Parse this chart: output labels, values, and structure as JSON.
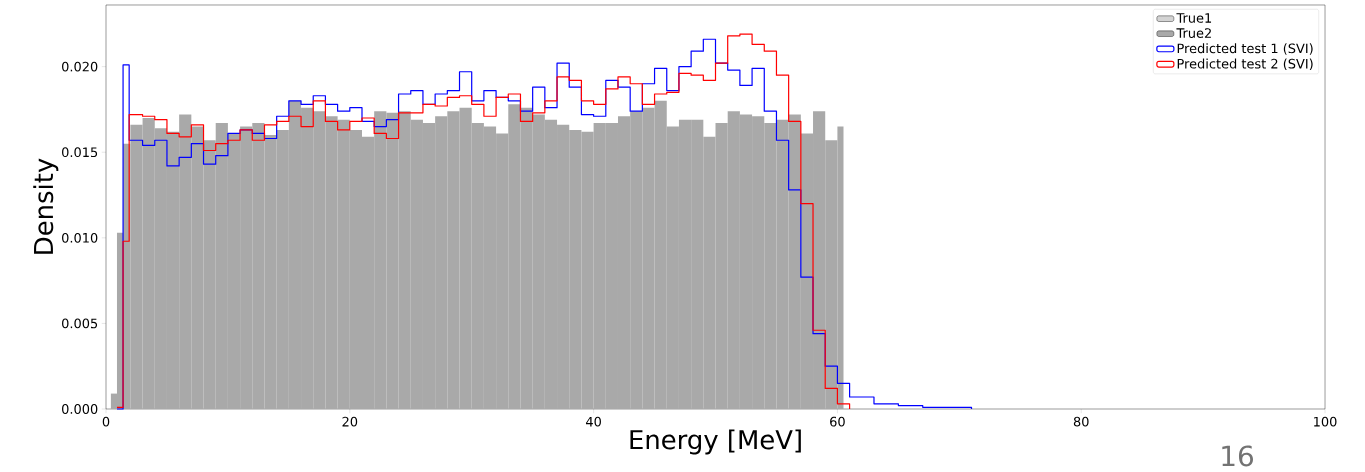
{
  "chart_data": {
    "type": "histogram",
    "xlabel": "Energy [MeV]",
    "ylabel": "Density",
    "xlim": [
      0,
      100
    ],
    "ylim": [
      0,
      0.0236
    ],
    "xticks": [
      0,
      20,
      40,
      60,
      80,
      100
    ],
    "yticks": [
      {
        "value": 0,
        "label": "0.000"
      },
      {
        "value": 0.005,
        "label": "0.005"
      },
      {
        "value": 0.01,
        "label": "0.010"
      },
      {
        "value": 0.015,
        "label": "0.015"
      },
      {
        "value": 0.02,
        "label": "0.020"
      }
    ],
    "legend": "top right",
    "annotations": [
      "16"
    ],
    "series": [
      {
        "name": "True1",
        "color": "#d3d3d3"
      },
      {
        "name": "True2",
        "color": "#a9a9a9",
        "bins": [
          0.4,
          0.9,
          1.4,
          2,
          3,
          4,
          5,
          6,
          7,
          8,
          9,
          10,
          11,
          12,
          13,
          14,
          15,
          16,
          17,
          18,
          19,
          20,
          21,
          22,
          23,
          24,
          25,
          26,
          27,
          28,
          29,
          30,
          31,
          32,
          33,
          34,
          35,
          36,
          37,
          38,
          39,
          40,
          41,
          42,
          43,
          44,
          45,
          46,
          47,
          48,
          49,
          50,
          51,
          52,
          53,
          54,
          55,
          56,
          57,
          58,
          59,
          60,
          60.5
        ],
        "values": [
          0.0009,
          0.0103,
          0.0155,
          0.0166,
          0.017,
          0.0164,
          0.0162,
          0.0172,
          0.0165,
          0.0157,
          0.0167,
          0.0161,
          0.0165,
          0.0167,
          0.016,
          0.0163,
          0.018,
          0.0176,
          0.0174,
          0.0171,
          0.0169,
          0.0163,
          0.0159,
          0.0174,
          0.0173,
          0.0174,
          0.0169,
          0.0167,
          0.0171,
          0.0174,
          0.0176,
          0.0167,
          0.0165,
          0.0161,
          0.0178,
          0.0176,
          0.0172,
          0.0169,
          0.0166,
          0.0163,
          0.0162,
          0.0167,
          0.0167,
          0.0171,
          0.0174,
          0.0176,
          0.018,
          0.0165,
          0.0169,
          0.0169,
          0.0159,
          0.0167,
          0.0174,
          0.0172,
          0.0171,
          0.0167,
          0.0169,
          0.0172,
          0.0161,
          0.0174,
          0.0157,
          0.0165
        ]
      },
      {
        "name": "Predicted test 1 (SVI)",
        "type": "step",
        "color": "#0000ff",
        "x": [
          0.9,
          1.4,
          1.9,
          3,
          4,
          5,
          6,
          7,
          8,
          9,
          10,
          11,
          12,
          13,
          14,
          15,
          16,
          17,
          18,
          19,
          20,
          21,
          22,
          23,
          24,
          25,
          26,
          27,
          28,
          29,
          30,
          31,
          32,
          33,
          34,
          35,
          36,
          37,
          38,
          39,
          40,
          41,
          42,
          43,
          44,
          45,
          46,
          47,
          48,
          49,
          50,
          51,
          52,
          53,
          54,
          55,
          56,
          57,
          58,
          59,
          60,
          61,
          62,
          63,
          64,
          65,
          66,
          67,
          68,
          69,
          70,
          71
        ],
        "values": [
          0,
          0.0201,
          0.0157,
          0.0154,
          0.0157,
          0.0142,
          0.0147,
          0.0155,
          0.0143,
          0.0148,
          0.0161,
          0.0163,
          0.0161,
          0.0158,
          0.0171,
          0.018,
          0.0178,
          0.0183,
          0.0178,
          0.0174,
          0.0176,
          0.0168,
          0.0165,
          0.0169,
          0.0184,
          0.0186,
          0.0178,
          0.0184,
          0.0186,
          0.0197,
          0.018,
          0.0186,
          0.0182,
          0.018,
          0.0174,
          0.0188,
          0.0176,
          0.0202,
          0.0188,
          0.0172,
          0.0171,
          0.0192,
          0.0188,
          0.0174,
          0.019,
          0.0199,
          0.0186,
          0.02,
          0.0209,
          0.0216,
          0.0202,
          0.0198,
          0.0189,
          0.0199,
          0.0174,
          0.0157,
          0.0128,
          0.0077,
          0.0044,
          0.0025,
          0.0015,
          0.0007,
          0.0007,
          0.0003,
          0.0003,
          0.0002,
          0.0002,
          0.0001,
          0.0001,
          0.0001,
          0.0001,
          0
        ]
      },
      {
        "name": "Predicted test 2 (SVI)",
        "type": "step",
        "color": "#ff0000",
        "x": [
          0.9,
          1.4,
          1.9,
          3,
          4,
          5,
          6,
          7,
          8,
          9,
          10,
          11,
          12,
          13,
          14,
          15,
          16,
          17,
          18,
          19,
          20,
          21,
          22,
          23,
          24,
          25,
          26,
          27,
          28,
          29,
          30,
          31,
          32,
          33,
          34,
          35,
          36,
          37,
          38,
          39,
          40,
          41,
          42,
          43,
          44,
          45,
          46,
          47,
          48,
          49,
          50,
          51,
          52,
          53,
          54,
          55,
          56,
          57,
          58,
          59,
          60,
          61
        ],
        "values": [
          0.0001,
          0.0098,
          0.0172,
          0.0171,
          0.0169,
          0.0161,
          0.0159,
          0.0166,
          0.0151,
          0.0155,
          0.0157,
          0.0163,
          0.0157,
          0.0166,
          0.0168,
          0.0171,
          0.0165,
          0.018,
          0.0168,
          0.0163,
          0.0168,
          0.017,
          0.0161,
          0.0158,
          0.0173,
          0.0173,
          0.0178,
          0.0177,
          0.0182,
          0.0183,
          0.0178,
          0.0171,
          0.0182,
          0.0184,
          0.0168,
          0.0173,
          0.018,
          0.0194,
          0.0192,
          0.018,
          0.0178,
          0.0187,
          0.0194,
          0.019,
          0.0178,
          0.0184,
          0.0185,
          0.0196,
          0.0195,
          0.0192,
          0.0202,
          0.0218,
          0.0219,
          0.0213,
          0.0209,
          0.0195,
          0.0168,
          0.012,
          0.0046,
          0.0012,
          0.0003,
          0
        ]
      }
    ]
  }
}
